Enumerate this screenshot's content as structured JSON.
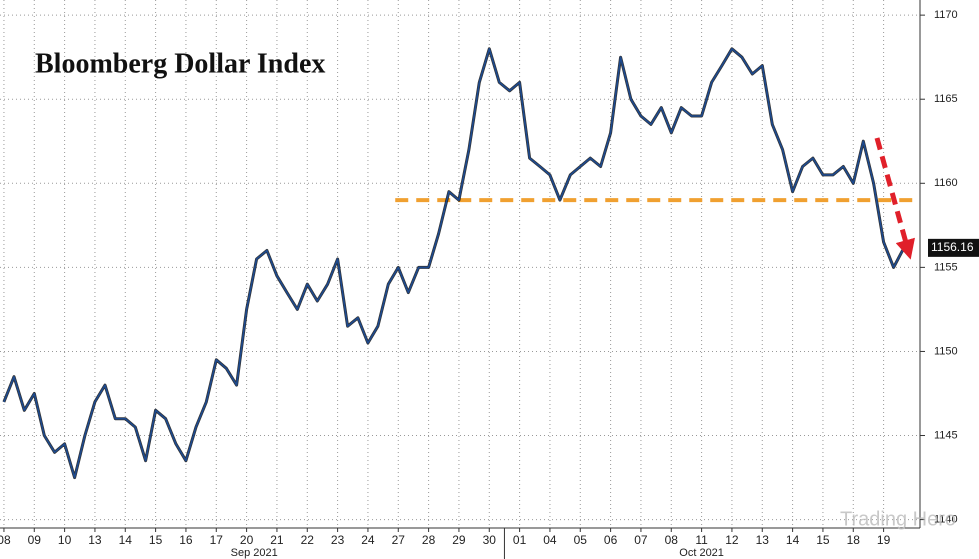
{
  "chart_data": {
    "type": "line",
    "title": "Bloomberg Dollar Index",
    "x": [
      0,
      0.33,
      0.67,
      1,
      1.33,
      1.67,
      2,
      2.33,
      2.67,
      3,
      3.33,
      3.67,
      4,
      4.33,
      4.67,
      5,
      5.33,
      5.67,
      6,
      6.33,
      6.67,
      7,
      7.33,
      7.67,
      8,
      8.33,
      8.67,
      9,
      9.33,
      9.67,
      10,
      10.33,
      10.67,
      11,
      11.33,
      11.67,
      12,
      12.33,
      12.67,
      13,
      13.33,
      13.67,
      14,
      14.33,
      14.67,
      15,
      15.33,
      15.67,
      16,
      16.33,
      16.67,
      17,
      17.33,
      17.67,
      18,
      18.33,
      18.67,
      19,
      19.33,
      19.67,
      20,
      20.33,
      20.67,
      21,
      21.33,
      21.67,
      22,
      22.33,
      22.67,
      23,
      23.33,
      23.67,
      24,
      24.33,
      24.67,
      25,
      25.33,
      25.67,
      26,
      26.33,
      26.67,
      27,
      27.33,
      27.67,
      28,
      28.33,
      28.67,
      29,
      29.33,
      29.67
    ],
    "values": [
      1147,
      1148.5,
      1146.5,
      1147.5,
      1145,
      1144,
      1144.5,
      1142.5,
      1145,
      1147,
      1148,
      1146,
      1146,
      1145.5,
      1143.5,
      1146.5,
      1146,
      1144.5,
      1143.5,
      1145.5,
      1147,
      1149.5,
      1149,
      1148,
      1152.5,
      1155.5,
      1156,
      1154.5,
      1153.5,
      1152.5,
      1154,
      1153,
      1154,
      1155.5,
      1151.5,
      1152,
      1150.5,
      1151.5,
      1154,
      1155,
      1153.5,
      1155,
      1155,
      1157,
      1159.5,
      1159,
      1162,
      1166,
      1168,
      1166,
      1165.5,
      1166,
      1161.5,
      1161,
      1160.5,
      1159,
      1160.5,
      1161,
      1161.5,
      1161,
      1163,
      1167.5,
      1165,
      1164,
      1163.5,
      1164.5,
      1163,
      1164.5,
      1164,
      1164,
      1166,
      1167,
      1168,
      1167.5,
      1166.5,
      1167,
      1163.5,
      1162,
      1159.5,
      1161,
      1161.5,
      1160.5,
      1160.5,
      1161,
      1160,
      1162.5,
      1160,
      1156.5,
      1155,
      1156.16
    ],
    "color": "#1d4a8f",
    "xlim": [
      -0.13,
      30.2
    ],
    "xticks": [
      {
        "value": 0,
        "label": "08"
      },
      {
        "value": 1,
        "label": "09"
      },
      {
        "value": 2,
        "label": "10"
      },
      {
        "value": 3,
        "label": "13"
      },
      {
        "value": 4,
        "label": "14"
      },
      {
        "value": 5,
        "label": "15"
      },
      {
        "value": 6,
        "label": "16"
      },
      {
        "value": 7,
        "label": "17"
      },
      {
        "value": 8,
        "label": "20"
      },
      {
        "value": 9,
        "label": "21"
      },
      {
        "value": 10,
        "label": "22"
      },
      {
        "value": 11,
        "label": "23"
      },
      {
        "value": 12,
        "label": "24"
      },
      {
        "value": 13,
        "label": "27"
      },
      {
        "value": 14,
        "label": "28"
      },
      {
        "value": 15,
        "label": "29"
      },
      {
        "value": 16,
        "label": "30"
      },
      {
        "value": 17,
        "label": "01"
      },
      {
        "value": 18,
        "label": "04"
      },
      {
        "value": 19,
        "label": "05"
      },
      {
        "value": 20,
        "label": "06"
      },
      {
        "value": 21,
        "label": "07"
      },
      {
        "value": 22,
        "label": "08"
      },
      {
        "value": 23,
        "label": "11"
      },
      {
        "value": 24,
        "label": "12"
      },
      {
        "value": 25,
        "label": "13"
      },
      {
        "value": 26,
        "label": "14"
      },
      {
        "value": 27,
        "label": "15"
      },
      {
        "value": 28,
        "label": "18"
      },
      {
        "value": 29,
        "label": "19"
      }
    ],
    "x_groups": [
      {
        "label": "Sep 2021",
        "from": 0,
        "to": 16.5
      },
      {
        "label": "Oct 2021",
        "from": 16.5,
        "to": 30.2
      }
    ],
    "ylim": [
      1139.5,
      1170.9
    ],
    "yticks": [
      1140,
      1145,
      1150,
      1155,
      1160,
      1165,
      1170
    ],
    "grid": true,
    "last_value": 1156.16,
    "reference_line": {
      "value": 1159,
      "from": 12.9,
      "to": 30.1,
      "color": "#f0a030"
    },
    "watermark": "Trading Hero"
  }
}
